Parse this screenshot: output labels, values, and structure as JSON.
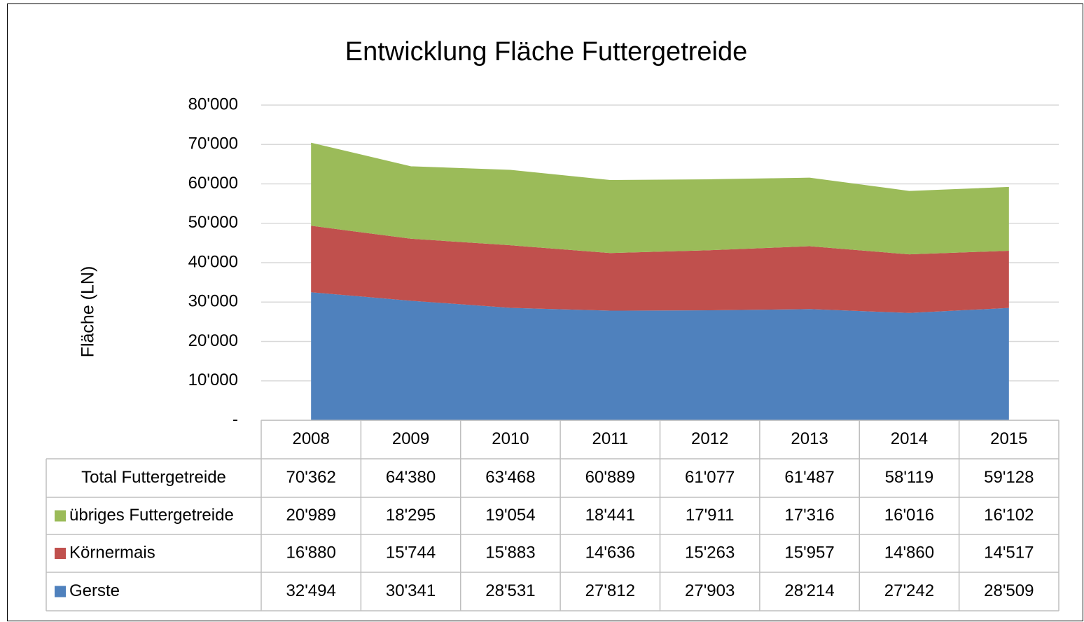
{
  "chart_data": {
    "type": "stacked_area",
    "title": "Entwicklung Fläche Futtergetreide",
    "y_label": "Fläche (LN)",
    "categories": [
      "2008",
      "2009",
      "2010",
      "2011",
      "2012",
      "2013",
      "2014",
      "2015"
    ],
    "series": [
      {
        "name": "Gerste",
        "color": "#4f81bd",
        "values": [
          32494,
          30341,
          28531,
          27812,
          27903,
          28214,
          27242,
          28509
        ],
        "value_labels": [
          "32'494",
          "30'341",
          "28'531",
          "27'812",
          "27'903",
          "28'214",
          "27'242",
          "28'509"
        ]
      },
      {
        "name": "Körnermais",
        "color": "#c0504d",
        "values": [
          16880,
          15744,
          15883,
          14636,
          15263,
          15957,
          14860,
          14517
        ],
        "value_labels": [
          "16'880",
          "15'744",
          "15'883",
          "14'636",
          "15'263",
          "15'957",
          "14'860",
          "14'517"
        ]
      },
      {
        "name": "übriges Futtergetreide",
        "color": "#9bbb59",
        "values": [
          20989,
          18295,
          19054,
          18441,
          17911,
          17316,
          16016,
          16102
        ],
        "value_labels": [
          "20'989",
          "18'295",
          "19'054",
          "18'441",
          "17'911",
          "17'316",
          "16'016",
          "16'102"
        ]
      }
    ],
    "total": {
      "name": "Total Futtergetreide",
      "values": [
        70362,
        64380,
        63468,
        60889,
        61077,
        61487,
        58119,
        59128
      ],
      "value_labels": [
        "70'362",
        "64'380",
        "63'468",
        "60'889",
        "61'077",
        "61'487",
        "58'119",
        "59'128"
      ]
    },
    "ylim": [
      0,
      80000
    ],
    "yticks": [
      {
        "value": 0,
        "label": "-"
      },
      {
        "value": 10000,
        "label": "10'000"
      },
      {
        "value": 20000,
        "label": "20'000"
      },
      {
        "value": 30000,
        "label": "30'000"
      },
      {
        "value": 40000,
        "label": "40'000"
      },
      {
        "value": 50000,
        "label": "50'000"
      },
      {
        "value": 60000,
        "label": "60'000"
      },
      {
        "value": 70000,
        "label": "70'000"
      },
      {
        "value": 80000,
        "label": "80'000"
      }
    ],
    "grid": true
  }
}
